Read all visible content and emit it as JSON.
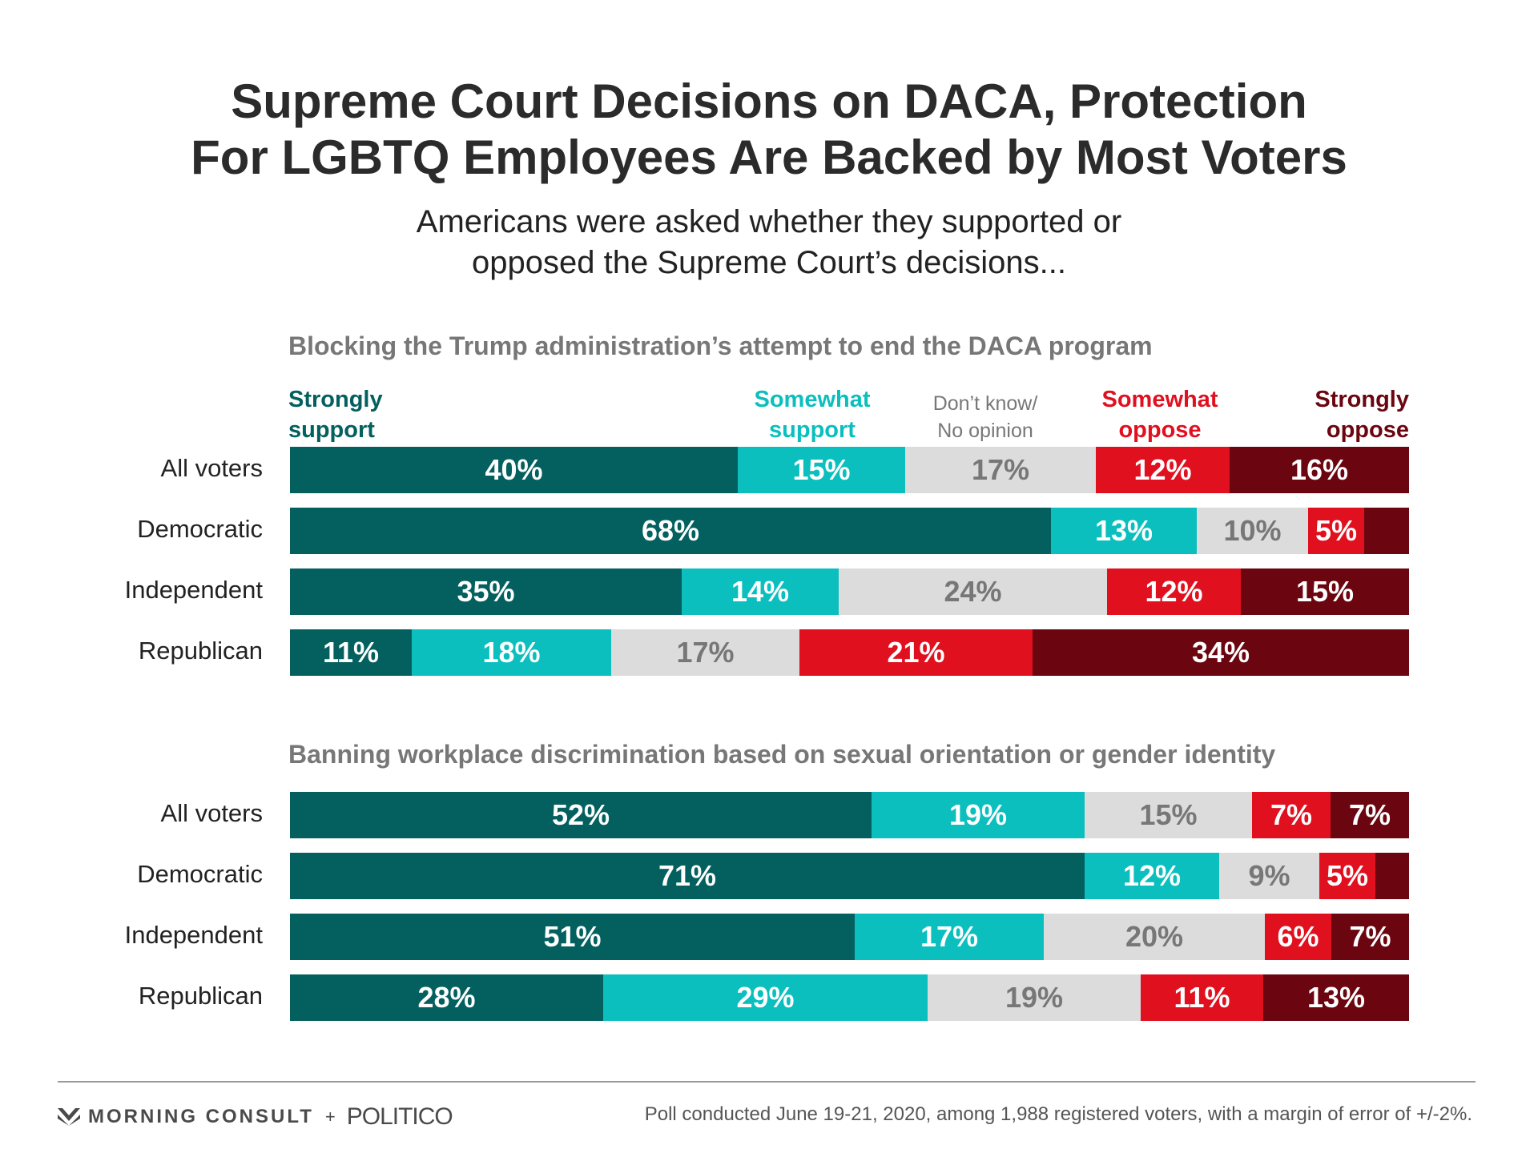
{
  "title": {
    "line1": "Supreme Court Decisions on DACA, Protection",
    "line2": "For LGBTQ Employees Are Backed by Most Voters"
  },
  "subtitle": {
    "line1": "Americans were asked whether they supported or",
    "line2": "opposed the Supreme Court’s decisions..."
  },
  "legend": [
    {
      "line1": "Strongly",
      "line2": "support",
      "color": "#04605f"
    },
    {
      "line1": "Somewhat",
      "line2": "support",
      "color": "#0bbfbf"
    },
    {
      "line1": "Don’t know/",
      "line2": "No opinion",
      "color": "#dcdcdc"
    },
    {
      "line1": "Somewhat",
      "line2": "oppose",
      "color": "#e0101f"
    },
    {
      "line1": "Strongly",
      "line2": "oppose",
      "color": "#6b050f"
    }
  ],
  "chart_data": [
    {
      "type": "bar",
      "stacked": true,
      "orientation": "horizontal",
      "title": "Blocking the Trump administration’s attempt to end the DACA program",
      "categories": [
        "All voters",
        "Democratic",
        "Independent",
        "Republican"
      ],
      "series": [
        {
          "name": "Strongly support",
          "color": "#04605f",
          "values": [
            40,
            68,
            35,
            11
          ],
          "labels": [
            "40%",
            "68%",
            "35%",
            "11%"
          ]
        },
        {
          "name": "Somewhat support",
          "color": "#0bbfbf",
          "values": [
            15,
            13,
            14,
            18
          ],
          "labels": [
            "15%",
            "13%",
            "14%",
            "18%"
          ]
        },
        {
          "name": "Don’t know/No opinion",
          "color": "#dcdcdc",
          "values": [
            17,
            10,
            24,
            17
          ],
          "labels": [
            "17%",
            "10%",
            "24%",
            "17%"
          ]
        },
        {
          "name": "Somewhat oppose",
          "color": "#e0101f",
          "values": [
            12,
            5,
            12,
            21
          ],
          "labels": [
            "12%",
            "5%",
            "12%",
            "21%"
          ]
        },
        {
          "name": "Strongly oppose",
          "color": "#6b050f",
          "values": [
            16,
            4,
            15,
            34
          ],
          "labels": [
            "16%",
            "",
            "15%",
            "34%"
          ]
        }
      ],
      "xlim": [
        0,
        100
      ]
    },
    {
      "type": "bar",
      "stacked": true,
      "orientation": "horizontal",
      "title": "Banning workplace discrimination based on sexual orientation or gender identity",
      "categories": [
        "All voters",
        "Democratic",
        "Independent",
        "Republican"
      ],
      "series": [
        {
          "name": "Strongly support",
          "color": "#04605f",
          "values": [
            52,
            71,
            51,
            28
          ],
          "labels": [
            "52%",
            "71%",
            "51%",
            "28%"
          ]
        },
        {
          "name": "Somewhat support",
          "color": "#0bbfbf",
          "values": [
            19,
            12,
            17,
            29
          ],
          "labels": [
            "19%",
            "12%",
            "17%",
            "29%"
          ]
        },
        {
          "name": "Don’t know/No opinion",
          "color": "#dcdcdc",
          "values": [
            15,
            9,
            20,
            19
          ],
          "labels": [
            "15%",
            "9%",
            "20%",
            "19%"
          ]
        },
        {
          "name": "Somewhat oppose",
          "color": "#e0101f",
          "values": [
            7,
            5,
            6,
            11
          ],
          "labels": [
            "7%",
            "5%",
            "6%",
            "11%"
          ]
        },
        {
          "name": "Strongly oppose",
          "color": "#6b050f",
          "values": [
            7,
            3,
            7,
            13
          ],
          "labels": [
            "7%",
            "",
            "7%",
            "13%"
          ]
        }
      ],
      "xlim": [
        0,
        100
      ]
    }
  ],
  "footer": {
    "brand_morning_consult": "MORNING CONSULT",
    "brand_plus": "+",
    "brand_politico": "POLITICO",
    "note": "Poll conducted June 19-21, 2020, among 1,988 registered voters, with a margin of error of +/-2%."
  }
}
